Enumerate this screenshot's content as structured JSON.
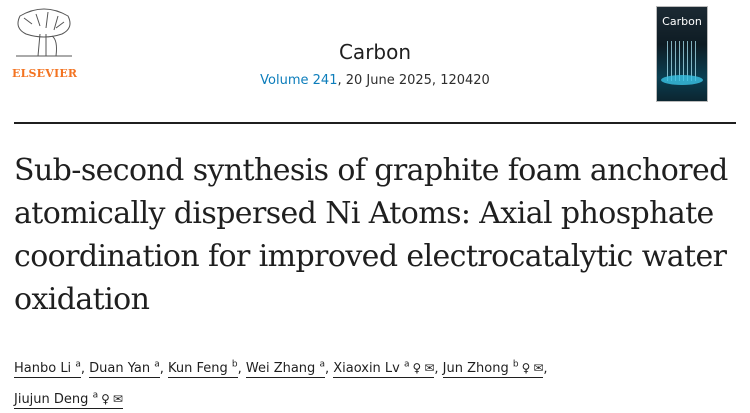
{
  "publisher": {
    "name": "ELSEVIER"
  },
  "journal": {
    "name": "Carbon",
    "volume_link": "Volume 241",
    "details": ", 20 June 2025, 120420",
    "cover_title": "Carbon"
  },
  "article": {
    "title": "Sub-second synthesis of graphite foam anchored atomically dispersed Ni Atoms: Axial phosphate coordination for improved electrocatalytic water oxidation"
  },
  "authors": [
    {
      "name": "Hanbo Li",
      "aff": "a",
      "icons": []
    },
    {
      "name": "Duan Yan",
      "aff": "a",
      "icons": []
    },
    {
      "name": "Kun Feng",
      "aff": "b",
      "icons": []
    },
    {
      "name": "Wei Zhang",
      "aff": "a",
      "icons": []
    },
    {
      "name": "Xiaoxin Lv",
      "aff": "a",
      "icons": [
        "person-icon",
        "email-icon"
      ]
    },
    {
      "name": "Jun Zhong",
      "aff": "b",
      "icons": [
        "person-icon",
        "email-icon"
      ]
    },
    {
      "name": "Jiujun Deng",
      "aff": "a",
      "icons": [
        "person-icon",
        "email-icon"
      ]
    }
  ],
  "colors": {
    "brand": "#f37321",
    "link": "#0c7dbb"
  }
}
